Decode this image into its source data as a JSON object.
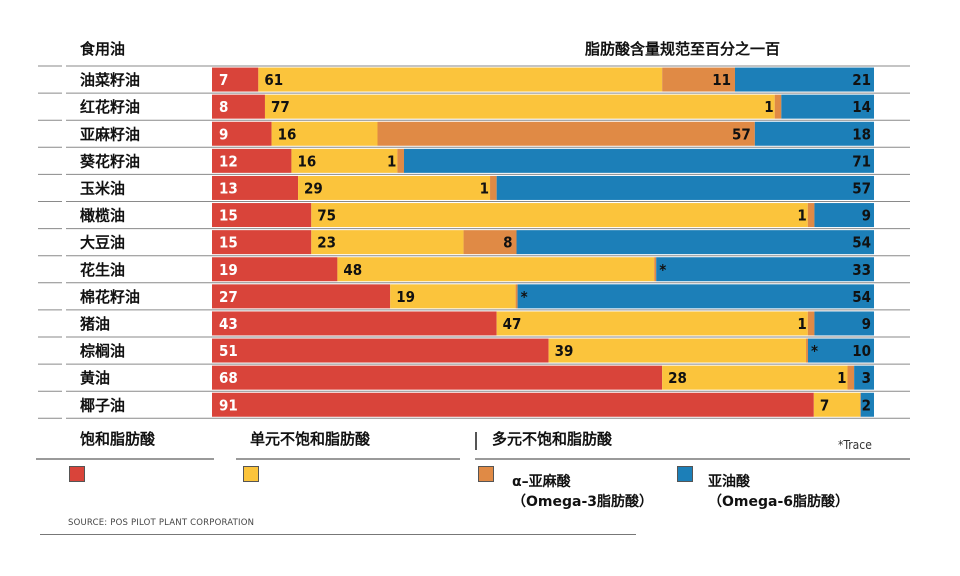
{
  "header": {
    "left_label": "食用油",
    "right_label": "脂肪酸含量规范至百分之一百"
  },
  "colors": {
    "saturated": "#d9443a",
    "mono": "#fbc43c",
    "alpha": "#e08a45",
    "omega6": "#1c7fb8"
  },
  "chart_data": {
    "type": "bar",
    "orientation": "horizontal",
    "stacked": true,
    "unit": "percent",
    "categories": [
      "油菜籽油",
      "红花籽油",
      "亚麻籽油",
      "葵花籽油",
      "玉米油",
      "橄榄油",
      "大豆油",
      "花生油",
      "棉花籽油",
      "猪油",
      "棕榈油",
      "黄油",
      "椰子油"
    ],
    "series": [
      {
        "name": "饱和脂肪酸",
        "color": "#d9443a",
        "values": [
          7,
          8,
          9,
          12,
          13,
          15,
          15,
          19,
          27,
          43,
          51,
          68,
          91
        ],
        "labels": [
          "7",
          "8",
          "9",
          "12",
          "13",
          "15",
          "15",
          "19",
          "27",
          "43",
          "51",
          "68",
          "91"
        ]
      },
      {
        "name": "单元不饱和脂肪酸",
        "color": "#fbc43c",
        "values": [
          61,
          77,
          16,
          16,
          29,
          75,
          23,
          48,
          19,
          47,
          39,
          28,
          7
        ],
        "labels": [
          "61",
          "77",
          "16",
          "16",
          "29",
          "75",
          "23",
          "48",
          "19",
          "47",
          "39",
          "28",
          "7"
        ]
      },
      {
        "name": "α–亚麻酸（Omega-3脂肪酸）",
        "color": "#e08a45",
        "values": [
          11,
          1,
          57,
          1,
          1,
          1,
          8,
          0.3,
          0.3,
          1,
          0.3,
          1,
          0.1
        ],
        "labels": [
          "11",
          "1",
          "57",
          "1",
          "1",
          "1",
          "8",
          "*",
          "*",
          "1",
          "*",
          "1",
          ""
        ]
      },
      {
        "name": "亚油酸（Omega-6脂肪酸）",
        "color": "#1c7fb8",
        "values": [
          21,
          14,
          18,
          71,
          57,
          9,
          54,
          33,
          54,
          9,
          10,
          3,
          2
        ],
        "labels": [
          "21",
          "14",
          "18",
          "71",
          "57",
          "9",
          "54",
          "33",
          "54",
          "9",
          "10",
          "3",
          "2"
        ]
      }
    ],
    "xlim": [
      0,
      100
    ],
    "grid": false,
    "legend_position": "bottom"
  },
  "legend": {
    "group_saturated": "饱和脂肪酸",
    "group_mono": "单元不饱和脂肪酸",
    "group_poly": "多元不饱和脂肪酸",
    "alpha_line1": "α–亚麻酸",
    "alpha_line2": "（Omega-3脂肪酸）",
    "omega6_line1": "亚油酸",
    "omega6_line2": "（Omega-6脂肪酸）",
    "trace_note": "*Trace"
  },
  "source": "SOURCE: POS PILOT PLANT CORPORATION"
}
